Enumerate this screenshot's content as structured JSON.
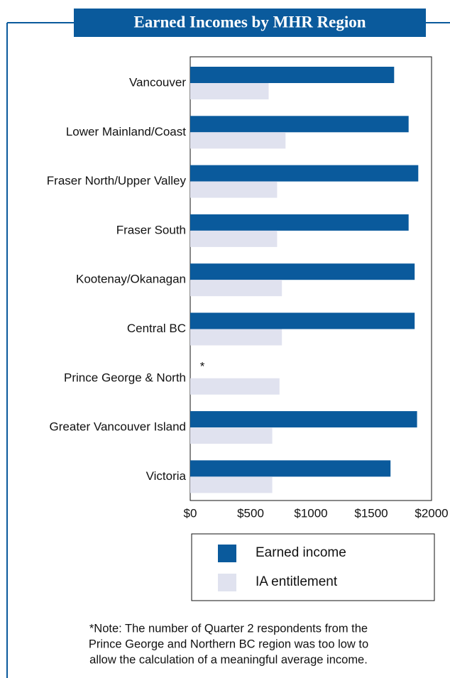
{
  "chart_data": {
    "type": "bar",
    "orientation": "horizontal",
    "title": "Earned Incomes by MHR Region",
    "categories": [
      "Vancouver",
      "Lower Mainland/Coast",
      "Fraser North/Upper Valley",
      "Fraser South",
      "Kootenay/Okanagan",
      "Central BC",
      "Prince George & North",
      "Greater Vancouver Island",
      "Victoria"
    ],
    "series": [
      {
        "name": "Earned income",
        "color": "#0a5a9c",
        "values": [
          1690,
          1810,
          1890,
          1810,
          1860,
          1860,
          null,
          1880,
          1660
        ]
      },
      {
        "name": "IA entitlement",
        "color": "#e0e2ef",
        "values": [
          650,
          790,
          720,
          720,
          760,
          760,
          740,
          680,
          680
        ]
      }
    ],
    "xlim": [
      0,
      2000
    ],
    "xticks": [
      {
        "value": 0,
        "label": "$0"
      },
      {
        "value": 500,
        "label": "$500"
      },
      {
        "value": 1000,
        "label": "$1000"
      },
      {
        "value": 1500,
        "label": "$1500"
      },
      {
        "value": 2000,
        "label": "$2000"
      }
    ],
    "annotation": "*",
    "note": [
      "*Note: The number of Quarter 2 respondents from the",
      "Prince George and Northern BC region was too low to",
      "allow the calculation of a meaningful average income."
    ]
  }
}
